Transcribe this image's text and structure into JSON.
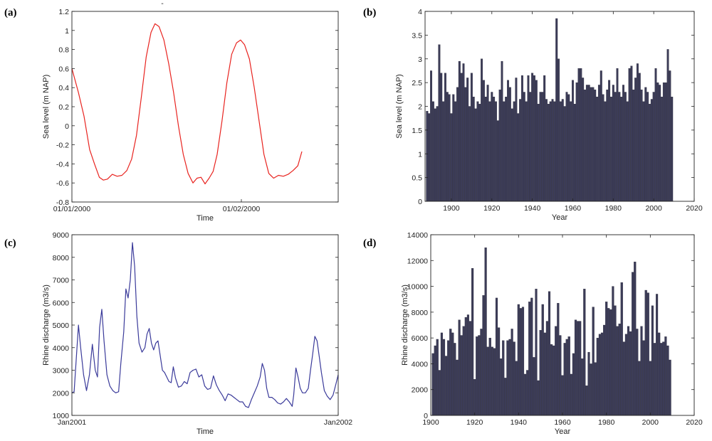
{
  "chart_data": [
    {
      "panel": "(a)",
      "type": "line",
      "color": "#e8231f",
      "xlabel": "Time",
      "ylabel": "Sea level (m NAP)",
      "xlim": [
        0,
        33
      ],
      "ylim": [
        -0.8,
        1.2
      ],
      "yticks": [
        -0.8,
        -0.6,
        -0.4,
        -0.2,
        0,
        0.2,
        0.4,
        0.6,
        0.8,
        1,
        1.2
      ],
      "yticklabels": [
        "-0.8",
        "-0.6",
        "-0.4",
        "-0.2",
        "0",
        "0.2",
        "0.4",
        "0.6",
        "0.8",
        "1",
        "1.2"
      ],
      "xticks": [
        {
          "value": 0,
          "label": "01/01/2000"
        },
        {
          "value": 21,
          "label": "01/02/2000"
        }
      ],
      "points": [
        [
          0,
          0.6
        ],
        [
          0.8,
          0.35
        ],
        [
          1.5,
          0.1
        ],
        [
          2.2,
          -0.25
        ],
        [
          2.8,
          -0.4
        ],
        [
          3.4,
          -0.54
        ],
        [
          3.9,
          -0.57
        ],
        [
          4.4,
          -0.56
        ],
        [
          5.0,
          -0.51
        ],
        [
          5.6,
          -0.53
        ],
        [
          6.2,
          -0.52
        ],
        [
          6.8,
          -0.47
        ],
        [
          7.4,
          -0.35
        ],
        [
          8.0,
          -0.1
        ],
        [
          8.6,
          0.3
        ],
        [
          9.2,
          0.72
        ],
        [
          9.8,
          0.98
        ],
        [
          10.3,
          1.07
        ],
        [
          10.8,
          1.04
        ],
        [
          11.4,
          0.9
        ],
        [
          12.0,
          0.65
        ],
        [
          12.6,
          0.35
        ],
        [
          13.2,
          0.0
        ],
        [
          13.8,
          -0.3
        ],
        [
          14.4,
          -0.5
        ],
        [
          15.0,
          -0.6
        ],
        [
          15.5,
          -0.55
        ],
        [
          16.0,
          -0.54
        ],
        [
          16.5,
          -0.61
        ],
        [
          17.0,
          -0.55
        ],
        [
          17.5,
          -0.48
        ],
        [
          18.0,
          -0.3
        ],
        [
          18.6,
          0.05
        ],
        [
          19.2,
          0.45
        ],
        [
          19.8,
          0.75
        ],
        [
          20.4,
          0.87
        ],
        [
          20.9,
          0.9
        ],
        [
          21.4,
          0.85
        ],
        [
          22.0,
          0.7
        ],
        [
          22.6,
          0.4
        ],
        [
          23.2,
          0.05
        ],
        [
          23.8,
          -0.3
        ],
        [
          24.4,
          -0.5
        ],
        [
          25.0,
          -0.55
        ],
        [
          25.6,
          -0.52
        ],
        [
          26.2,
          -0.53
        ],
        [
          26.8,
          -0.51
        ],
        [
          27.4,
          -0.47
        ],
        [
          28.0,
          -0.42
        ],
        [
          28.5,
          -0.27
        ]
      ]
    },
    {
      "panel": "(b)",
      "type": "bar",
      "color": "#3c3c58",
      "xlabel": "Year",
      "ylabel": "Sea level (m NAP)",
      "xlim": [
        1887,
        2020
      ],
      "ylim": [
        0,
        4
      ],
      "yticks": [
        0,
        0.5,
        1,
        1.5,
        2,
        2.5,
        3,
        3.5,
        4
      ],
      "yticklabels": [
        "0",
        "0.5",
        "1",
        "1.5",
        "2",
        "2.5",
        "3",
        "3.5",
        "4"
      ],
      "xticks": [
        1900,
        1920,
        1940,
        1960,
        1980,
        2000,
        2020
      ],
      "xticklabels": [
        "1900",
        "1920",
        "1940",
        "1960",
        "1980",
        "2000",
        "2020"
      ],
      "first_year": 1888,
      "values": [
        1.9,
        1.85,
        2.75,
        2.1,
        1.95,
        2.0,
        3.3,
        2.7,
        2.1,
        2.7,
        2.3,
        2.25,
        1.85,
        2.25,
        2.1,
        2.4,
        2.95,
        2.7,
        2.9,
        2.4,
        2.6,
        2.0,
        2.7,
        2.2,
        1.95,
        2.1,
        2.05,
        3.0,
        2.55,
        2.2,
        2.45,
        2.1,
        2.3,
        2.2,
        2.1,
        1.7,
        2.35,
        2.95,
        2.1,
        2.2,
        2.55,
        2.4,
        1.95,
        2.1,
        2.6,
        1.85,
        2.15,
        2.65,
        2.3,
        2.1,
        2.65,
        2.3,
        2.7,
        2.65,
        2.55,
        2.05,
        2.3,
        2.3,
        2.65,
        2.15,
        2.05,
        2.1,
        2.15,
        2.1,
        3.85,
        3.0,
        2.1,
        2.15,
        2.0,
        2.3,
        2.25,
        2.1,
        2.55,
        2.05,
        2.5,
        2.8,
        2.8,
        2.6,
        2.35,
        2.45,
        2.45,
        2.4,
        2.4,
        2.35,
        2.2,
        2.45,
        2.75,
        2.25,
        2.1,
        2.35,
        2.55,
        2.2,
        2.45,
        2.3,
        2.8,
        2.3,
        2.2,
        2.45,
        2.3,
        2.1,
        2.8,
        2.85,
        2.35,
        2.6,
        2.9,
        2.7,
        2.35,
        2.1,
        2.4,
        2.3,
        2.05,
        2.15,
        2.3,
        2.8,
        2.5,
        2.45,
        2.2,
        2.5,
        2.5,
        3.2,
        2.75,
        2.2
      ]
    },
    {
      "panel": "(c)",
      "type": "line",
      "color": "#3a3a9a",
      "xlabel": "Time",
      "ylabel": "Rhine discharge (m3/s)",
      "xlim": [
        0,
        365
      ],
      "ylim": [
        1000,
        9000
      ],
      "yticks": [
        1000,
        2000,
        3000,
        4000,
        5000,
        6000,
        7000,
        8000,
        9000
      ],
      "yticklabels": [
        "1000",
        "2000",
        "3000",
        "4000",
        "5000",
        "6000",
        "7000",
        "8000",
        "9000"
      ],
      "xticks": [
        {
          "value": 0,
          "label": "Jan2001"
        },
        {
          "value": 365,
          "label": "Jan2002"
        }
      ],
      "points": [
        [
          0,
          2000
        ],
        [
          3,
          2050
        ],
        [
          6,
          3500
        ],
        [
          9,
          5000
        ],
        [
          12,
          4000
        ],
        [
          16,
          2800
        ],
        [
          20,
          2100
        ],
        [
          24,
          2800
        ],
        [
          28,
          4150
        ],
        [
          32,
          3000
        ],
        [
          35,
          2700
        ],
        [
          38,
          4900
        ],
        [
          41,
          5700
        ],
        [
          44,
          4300
        ],
        [
          48,
          2800
        ],
        [
          52,
          2300
        ],
        [
          56,
          2100
        ],
        [
          60,
          2000
        ],
        [
          64,
          2050
        ],
        [
          67,
          3300
        ],
        [
          71,
          4700
        ],
        [
          74,
          6600
        ],
        [
          77,
          6200
        ],
        [
          80,
          7000
        ],
        [
          83,
          8650
        ],
        [
          86,
          7600
        ],
        [
          89,
          5400
        ],
        [
          92,
          4200
        ],
        [
          96,
          3800
        ],
        [
          100,
          4000
        ],
        [
          103,
          4600
        ],
        [
          106,
          4850
        ],
        [
          109,
          4200
        ],
        [
          112,
          3900
        ],
        [
          115,
          4200
        ],
        [
          118,
          4300
        ],
        [
          121,
          3650
        ],
        [
          124,
          3000
        ],
        [
          127,
          2900
        ],
        [
          130,
          2700
        ],
        [
          133,
          2500
        ],
        [
          136,
          2450
        ],
        [
          139,
          3150
        ],
        [
          142,
          2650
        ],
        [
          146,
          2250
        ],
        [
          150,
          2300
        ],
        [
          154,
          2500
        ],
        [
          158,
          2400
        ],
        [
          162,
          2900
        ],
        [
          166,
          3000
        ],
        [
          170,
          3050
        ],
        [
          174,
          2700
        ],
        [
          178,
          2800
        ],
        [
          182,
          2300
        ],
        [
          186,
          2150
        ],
        [
          190,
          2200
        ],
        [
          194,
          2750
        ],
        [
          198,
          2350
        ],
        [
          202,
          2100
        ],
        [
          206,
          1900
        ],
        [
          210,
          1650
        ],
        [
          214,
          1950
        ],
        [
          218,
          1900
        ],
        [
          222,
          1800
        ],
        [
          226,
          1700
        ],
        [
          230,
          1600
        ],
        [
          234,
          1600
        ],
        [
          238,
          1400
        ],
        [
          242,
          1350
        ],
        [
          246,
          1700
        ],
        [
          250,
          2000
        ],
        [
          254,
          2300
        ],
        [
          258,
          2700
        ],
        [
          261,
          3300
        ],
        [
          264,
          3000
        ],
        [
          267,
          2200
        ],
        [
          270,
          1800
        ],
        [
          274,
          1800
        ],
        [
          278,
          1700
        ],
        [
          282,
          1550
        ],
        [
          286,
          1500
        ],
        [
          290,
          1600
        ],
        [
          294,
          1750
        ],
        [
          298,
          1600
        ],
        [
          302,
          1400
        ],
        [
          304,
          1900
        ],
        [
          307,
          3100
        ],
        [
          310,
          2700
        ],
        [
          313,
          2200
        ],
        [
          316,
          2000
        ],
        [
          320,
          2000
        ],
        [
          324,
          2200
        ],
        [
          327,
          3000
        ],
        [
          330,
          3700
        ],
        [
          333,
          4500
        ],
        [
          336,
          4300
        ],
        [
          339,
          3600
        ],
        [
          342,
          2900
        ],
        [
          346,
          2100
        ],
        [
          350,
          1850
        ],
        [
          354,
          1700
        ],
        [
          358,
          1900
        ],
        [
          362,
          2400
        ],
        [
          365,
          2800
        ]
      ]
    },
    {
      "panel": "(d)",
      "type": "bar",
      "color": "#3c3c58",
      "xlabel": "Year",
      "ylabel": "Rhine discharge (m3/s)",
      "xlim": [
        1900,
        2020
      ],
      "ylim": [
        0,
        14000
      ],
      "yticks": [
        0,
        2000,
        4000,
        6000,
        8000,
        10000,
        12000,
        14000
      ],
      "yticklabels": [
        "0",
        "2000",
        "4000",
        "6000",
        "8000",
        "10000",
        "12000",
        "14000"
      ],
      "xticks": [
        1900,
        1920,
        1940,
        1960,
        1980,
        2000,
        2020
      ],
      "xticklabels": [
        "1900",
        "1920",
        "1940",
        "1960",
        "1980",
        "2000",
        "2020"
      ],
      "first_year": 1901,
      "values": [
        4800,
        5400,
        5900,
        3500,
        6400,
        5900,
        4600,
        5800,
        6700,
        6400,
        5600,
        4300,
        7400,
        6200,
        6900,
        7600,
        7800,
        7300,
        11400,
        2800,
        6100,
        6200,
        6700,
        9300,
        13000,
        5300,
        6000,
        5300,
        5200,
        9100,
        6800,
        4400,
        5800,
        2900,
        5800,
        5900,
        6700,
        5700,
        4200,
        8600,
        8300,
        8400,
        3200,
        3500,
        8800,
        9100,
        4500,
        9800,
        2700,
        6600,
        8600,
        6400,
        7300,
        9600,
        5500,
        5400,
        6900,
        8700,
        6200,
        3100,
        5600,
        5900,
        6100,
        3200,
        4800,
        7400,
        7300,
        7300,
        4400,
        9800,
        2300,
        4900,
        4000,
        8400,
        4100,
        6000,
        6300,
        6400,
        7000,
        8800,
        8300,
        8200,
        10000,
        8500,
        6900,
        7100,
        10300,
        5700,
        6300,
        6900,
        6500,
        11100,
        11900,
        6700,
        4200,
        6900,
        5800,
        9700,
        9500,
        4200,
        8500,
        5600,
        9400,
        6400,
        5600,
        5700,
        6100,
        5400,
        4300
      ]
    }
  ],
  "panel_labels": [
    "(a)",
    "(b)",
    "(c)",
    "(d)"
  ],
  "stray_mark": "-"
}
